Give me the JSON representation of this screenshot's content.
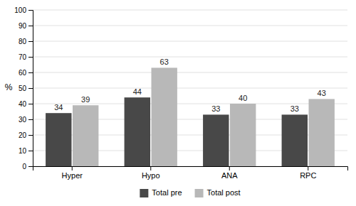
{
  "chart_data": {
    "type": "bar",
    "categories": [
      "Hyper",
      "Hypo",
      "ANA",
      "RPC"
    ],
    "series": [
      {
        "name": "Total pre",
        "color": "#484848",
        "values": [
          34,
          44,
          33,
          33
        ]
      },
      {
        "name": "Total post",
        "color": "#b8b8b8",
        "values": [
          39,
          63,
          40,
          43
        ]
      }
    ],
    "ylabel": "%",
    "ylim": [
      0,
      100
    ],
    "yticks": [
      0,
      10,
      20,
      30,
      40,
      50,
      60,
      70,
      80,
      90,
      100
    ],
    "grid": true,
    "legend": "bottom",
    "data_labels": true
  }
}
